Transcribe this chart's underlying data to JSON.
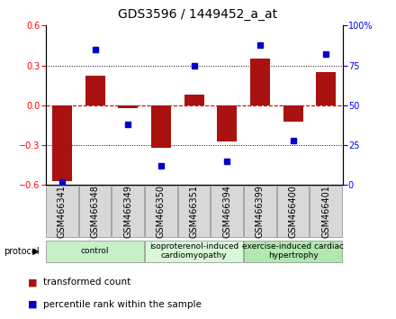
{
  "title": "GDS3596 / 1449452_a_at",
  "samples": [
    "GSM466341",
    "GSM466348",
    "GSM466349",
    "GSM466350",
    "GSM466351",
    "GSM466394",
    "GSM466399",
    "GSM466400",
    "GSM466401"
  ],
  "transformed_count": [
    -0.57,
    0.22,
    -0.02,
    -0.32,
    0.08,
    -0.27,
    0.35,
    -0.12,
    0.25
  ],
  "percentile_rank": [
    2,
    85,
    38,
    12,
    75,
    15,
    88,
    28,
    82
  ],
  "groups": [
    {
      "label": "control",
      "start": 0,
      "end": 3,
      "color": "#c8f0c8"
    },
    {
      "label": "isoproterenol-induced\ncardiomyopathy",
      "start": 3,
      "end": 6,
      "color": "#d8f8d8"
    },
    {
      "label": "exercise-induced cardiac\nhypertrophy",
      "start": 6,
      "end": 9,
      "color": "#b0e8b0"
    }
  ],
  "ylim_left": [
    -0.6,
    0.6
  ],
  "ylim_right": [
    0,
    100
  ],
  "yticks_left": [
    -0.6,
    -0.3,
    0.0,
    0.3,
    0.6
  ],
  "yticks_right": [
    0,
    25,
    50,
    75,
    100
  ],
  "bar_color": "#aa1111",
  "dot_color": "#0000cc",
  "zero_line_color": "#cc0000",
  "grid_color": "#000000",
  "plot_bg": "#ffffff",
  "title_fontsize": 10,
  "tick_fontsize": 7,
  "sample_fontsize": 7,
  "group_fontsize": 6.5,
  "legend_fontsize": 7.5,
  "protocol_label": "protocol",
  "legend_items": [
    "transformed count",
    "percentile rank within the sample"
  ]
}
